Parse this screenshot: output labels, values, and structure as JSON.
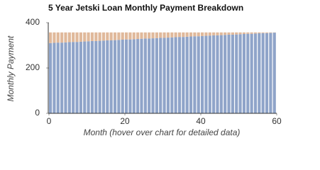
{
  "chart_data": {
    "type": "stacked-bar",
    "title": "5 Year Jetski Loan Monthly Payment Breakdown",
    "x_label": "Month (hover over chart for detailed data)",
    "y_label": "Monthly Payment",
    "x": [
      0,
      1,
      2,
      3,
      4,
      5,
      6,
      7,
      8,
      9,
      10,
      11,
      12,
      13,
      14,
      15,
      16,
      17,
      18,
      19,
      20,
      21,
      22,
      23,
      24,
      25,
      26,
      27,
      28,
      29,
      30,
      31,
      32,
      33,
      34,
      35,
      36,
      37,
      38,
      39,
      40,
      41,
      42,
      43,
      44,
      45,
      46,
      47,
      48,
      49,
      50,
      51,
      52,
      53,
      54,
      55,
      56,
      57,
      58,
      59
    ],
    "series": [
      {
        "color": "#8fa4c9",
        "values": [
          310,
          311,
          312,
          312,
          313,
          314,
          315,
          315,
          316,
          317,
          318,
          319,
          319,
          320,
          321,
          322,
          322,
          323,
          324,
          325,
          326,
          326,
          327,
          328,
          329,
          330,
          330,
          331,
          332,
          333,
          333,
          334,
          335,
          336,
          337,
          337,
          338,
          339,
          340,
          340,
          341,
          342,
          343,
          344,
          344,
          345,
          346,
          347,
          347,
          348,
          349,
          350,
          351,
          351,
          352,
          353,
          354,
          354,
          355,
          356
        ]
      },
      {
        "color": "#e0b99b",
        "values": [
          47,
          46,
          45,
          45,
          44,
          43,
          42,
          42,
          41,
          40,
          39,
          38,
          38,
          37,
          36,
          35,
          35,
          34,
          33,
          32,
          31,
          31,
          30,
          29,
          28,
          27,
          27,
          26,
          25,
          24,
          24,
          23,
          22,
          21,
          20,
          20,
          19,
          18,
          17,
          17,
          16,
          15,
          14,
          13,
          13,
          12,
          11,
          10,
          10,
          9,
          8,
          7,
          6,
          6,
          5,
          4,
          3,
          3,
          2,
          1
        ]
      }
    ],
    "xlim": [
      0,
      60
    ],
    "xticks": [
      0,
      20,
      40,
      60
    ],
    "ylim": [
      0,
      400
    ],
    "yticks": [
      0,
      200,
      400
    ]
  }
}
